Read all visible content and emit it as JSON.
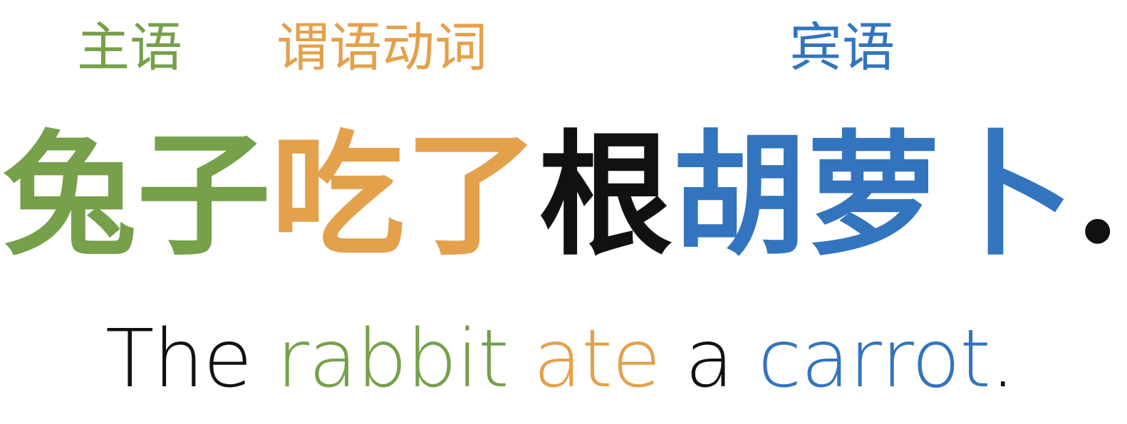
{
  "colors": {
    "subject": "#76A04A",
    "verb": "#E3A14C",
    "object": "#3374BE",
    "neutral": "#111111"
  },
  "labels": {
    "subject": "主语",
    "verb": "谓语动词",
    "object": "宾语"
  },
  "chinese_sentence": {
    "subject": "兔子",
    "verb": "吃了",
    "measure": "根",
    "object": "胡萝卜",
    "punct": "."
  },
  "english_sentence": {
    "article_the": "The ",
    "subject": "rabbit",
    "space1": " ",
    "verb": "ate",
    "article_a": " a ",
    "object": "carrot",
    "punct": "."
  }
}
